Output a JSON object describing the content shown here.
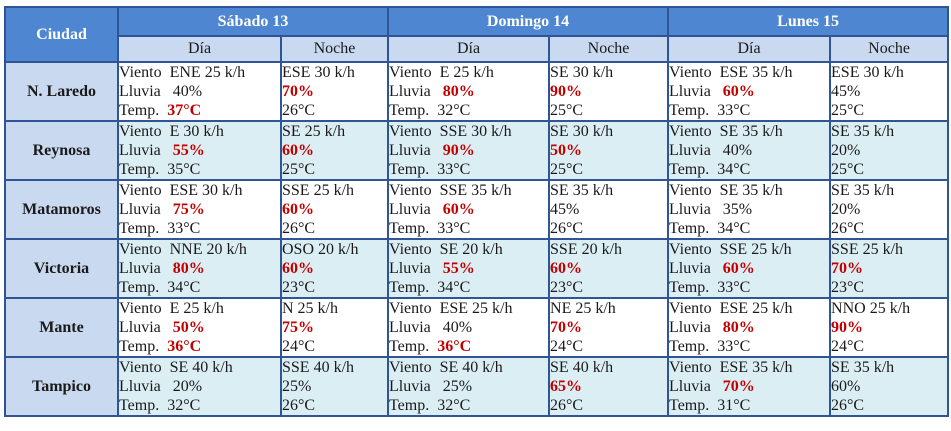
{
  "header": {
    "city_label": "Ciudad",
    "days": [
      "Sábado 13",
      "Domingo 14",
      "Lunes 15"
    ],
    "day_label": "Día",
    "night_label": "Noche"
  },
  "labels": {
    "wind": "Viento",
    "rain": "Lluvia",
    "temp": "Temp."
  },
  "colors": {
    "header_bg": "#4f86d1",
    "subheader_bg": "#c9d9f0",
    "alt_row_bg": "#dbeef4",
    "border": "#2f5597",
    "highlight": "#c00000"
  },
  "rows": [
    {
      "city": "N. Laredo",
      "cells": [
        {
          "wind": "ENE 25 k/h",
          "rain": "40%",
          "rain_hot": false,
          "temp": "37°C",
          "temp_hot": true
        },
        {
          "wind": "ESE 30 k/h",
          "rain": "70%",
          "rain_hot": true,
          "temp": "26°C",
          "temp_hot": false
        },
        {
          "wind": "E 25 k/h",
          "rain": "80%",
          "rain_hot": true,
          "temp": "32°C",
          "temp_hot": false
        },
        {
          "wind": "SE 30 k/h",
          "rain": "90%",
          "rain_hot": true,
          "temp": "25°C",
          "temp_hot": false
        },
        {
          "wind": "ESE 35 k/h",
          "rain": "60%",
          "rain_hot": true,
          "temp": "33°C",
          "temp_hot": false
        },
        {
          "wind": "ESE 30 k/h",
          "rain": "45%",
          "rain_hot": false,
          "temp": "25°C",
          "temp_hot": false
        }
      ]
    },
    {
      "city": "Reynosa",
      "cells": [
        {
          "wind": "E 30 k/h",
          "rain": "55%",
          "rain_hot": true,
          "temp": "35°C",
          "temp_hot": false
        },
        {
          "wind": "SE 25 k/h",
          "rain": "60%",
          "rain_hot": true,
          "temp": "25°C",
          "temp_hot": false
        },
        {
          "wind": "SSE 30 k/h",
          "rain": "90%",
          "rain_hot": true,
          "temp": "33°C",
          "temp_hot": false
        },
        {
          "wind": "SE 30 k/h",
          "rain": "50%",
          "rain_hot": true,
          "temp": "25°C",
          "temp_hot": false
        },
        {
          "wind": "SE 35 k/h",
          "rain": "40%",
          "rain_hot": false,
          "temp": "34°C",
          "temp_hot": false
        },
        {
          "wind": "SE 35 k/h",
          "rain": "20%",
          "rain_hot": false,
          "temp": "25°C",
          "temp_hot": false
        }
      ]
    },
    {
      "city": "Matamoros",
      "cells": [
        {
          "wind": "ESE 30 k/h",
          "rain": "75%",
          "rain_hot": true,
          "temp": "33°C",
          "temp_hot": false
        },
        {
          "wind": "SSE 25 k/h",
          "rain": "60%",
          "rain_hot": true,
          "temp": "26°C",
          "temp_hot": false
        },
        {
          "wind": "SSE 35 k/h",
          "rain": "60%",
          "rain_hot": true,
          "temp": "33°C",
          "temp_hot": false
        },
        {
          "wind": "SE 35 k/h",
          "rain": "45%",
          "rain_hot": false,
          "temp": "26°C",
          "temp_hot": false
        },
        {
          "wind": "SE 35 k/h",
          "rain": "35%",
          "rain_hot": false,
          "temp": "34°C",
          "temp_hot": false
        },
        {
          "wind": "SE 35 k/h",
          "rain": "20%",
          "rain_hot": false,
          "temp": "26°C",
          "temp_hot": false
        }
      ]
    },
    {
      "city": "Victoria",
      "cells": [
        {
          "wind": "NNE 20 k/h",
          "rain": "80%",
          "rain_hot": true,
          "temp": "34°C",
          "temp_hot": false
        },
        {
          "wind": "OSO 20 k/h",
          "rain": "60%",
          "rain_hot": true,
          "temp": "23°C",
          "temp_hot": false
        },
        {
          "wind": "SE 20 k/h",
          "rain": "55%",
          "rain_hot": true,
          "temp": "34°C",
          "temp_hot": false
        },
        {
          "wind": "SSE 20 k/h",
          "rain": "60%",
          "rain_hot": true,
          "temp": "23°C",
          "temp_hot": false
        },
        {
          "wind": "SSE 25 k/h",
          "rain": "60%",
          "rain_hot": true,
          "temp": "33°C",
          "temp_hot": false
        },
        {
          "wind": "SSE 25 k/h",
          "rain": "70%",
          "rain_hot": true,
          "temp": "23°C",
          "temp_hot": false
        }
      ]
    },
    {
      "city": "Mante",
      "cells": [
        {
          "wind": "E 25 k/h",
          "rain": "50%",
          "rain_hot": true,
          "temp": "36°C",
          "temp_hot": true
        },
        {
          "wind": "N 25 k/h",
          "rain": "75%",
          "rain_hot": true,
          "temp": "24°C",
          "temp_hot": false
        },
        {
          "wind": "ESE 25 k/h",
          "rain": "40%",
          "rain_hot": false,
          "temp": "36°C",
          "temp_hot": true
        },
        {
          "wind": "NE 25 k/h",
          "rain": "70%",
          "rain_hot": true,
          "temp": "24°C",
          "temp_hot": false
        },
        {
          "wind": "ESE 25 k/h",
          "rain": "80%",
          "rain_hot": true,
          "temp": "33°C",
          "temp_hot": false
        },
        {
          "wind": "NNO 25 k/h",
          "rain": "90%",
          "rain_hot": true,
          "temp": "24°C",
          "temp_hot": false
        }
      ]
    },
    {
      "city": "Tampico",
      "cells": [
        {
          "wind": "SE 40 k/h",
          "rain": "20%",
          "rain_hot": false,
          "temp": "32°C",
          "temp_hot": false
        },
        {
          "wind": "SSE 40 k/h",
          "rain": "25%",
          "rain_hot": false,
          "temp": "26°C",
          "temp_hot": false
        },
        {
          "wind": "SE 40 k/h",
          "rain": "25%",
          "rain_hot": false,
          "temp": "32°C",
          "temp_hot": false
        },
        {
          "wind": "SE 40 k/h",
          "rain": "65%",
          "rain_hot": true,
          "temp": "26°C",
          "temp_hot": false
        },
        {
          "wind": "ESE 35 k/h",
          "rain": "70%",
          "rain_hot": true,
          "temp": "31°C",
          "temp_hot": false
        },
        {
          "wind": "SE 35 k/h",
          "rain": "60%",
          "rain_hot": false,
          "temp": "26°C",
          "temp_hot": false
        }
      ]
    }
  ]
}
